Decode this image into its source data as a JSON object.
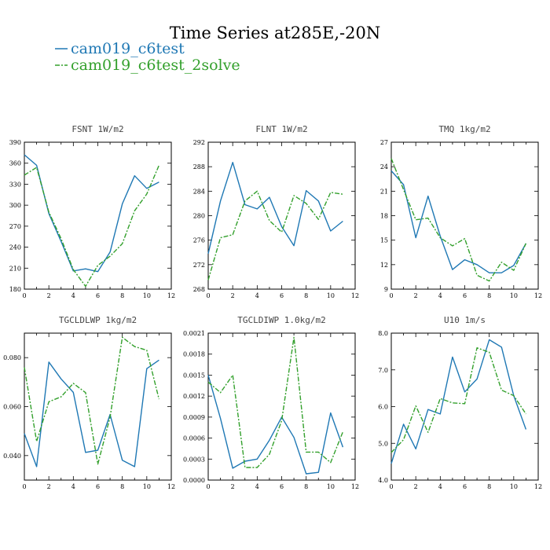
{
  "figure_title": "Time Series at285E,-20N",
  "legend": [
    {
      "name": "cam019_c6test",
      "color": "#1f78b4",
      "dash": "solid"
    },
    {
      "name": "cam019_c6test_2solve",
      "color": "#33a02c",
      "dash": "dashdot"
    }
  ],
  "chart_data": [
    {
      "type": "line",
      "title": "FSNT  1W/m2",
      "x": [
        0,
        1,
        2,
        3,
        4,
        5,
        6,
        7,
        8,
        9,
        10,
        11
      ],
      "xlim": [
        0,
        12
      ],
      "ylim": [
        180,
        390
      ],
      "xticks": [
        0,
        2,
        4,
        6,
        8,
        10,
        12
      ],
      "yticks": [
        180,
        210,
        240,
        270,
        300,
        330,
        360,
        390
      ],
      "ytick_labels": [
        "180",
        "210",
        "240",
        "270",
        "300",
        "330",
        "360",
        "390"
      ],
      "series": [
        {
          "name": "cam019_c6test",
          "values": [
            372,
            357,
            288,
            248,
            206,
            209,
            205,
            233,
            302,
            342,
            324,
            333
          ]
        },
        {
          "name": "cam019_c6test_2solve",
          "values": [
            343,
            354,
            290,
            252,
            208,
            184,
            214,
            227,
            245,
            292,
            316,
            357
          ]
        }
      ]
    },
    {
      "type": "line",
      "title": "FLNT  1W/m2",
      "x": [
        0,
        1,
        2,
        3,
        4,
        5,
        6,
        7,
        8,
        9,
        10,
        11
      ],
      "xlim": [
        0,
        12
      ],
      "ylim": [
        268,
        292
      ],
      "xticks": [
        0,
        2,
        4,
        6,
        8,
        10,
        12
      ],
      "yticks": [
        268,
        272,
        276,
        280,
        284,
        288,
        292
      ],
      "ytick_labels": [
        "268",
        "272",
        "276",
        "280",
        "284",
        "288",
        "292"
      ],
      "series": [
        {
          "name": "cam019_c6test",
          "values": [
            273.8,
            282.4,
            288.7,
            281.8,
            281.1,
            283.0,
            278.2,
            275.1,
            284.1,
            282.4,
            277.5,
            279.1
          ]
        },
        {
          "name": "cam019_c6test_2solve",
          "values": [
            269.5,
            276.4,
            276.9,
            282.4,
            284.0,
            279.2,
            277.3,
            283.3,
            282.0,
            279.4,
            283.8,
            283.5
          ]
        }
      ]
    },
    {
      "type": "line",
      "title": "TMQ  1kg/m2",
      "x": [
        0,
        1,
        2,
        3,
        4,
        5,
        6,
        7,
        8,
        9,
        10,
        11
      ],
      "xlim": [
        0,
        12
      ],
      "ylim": [
        9,
        27
      ],
      "xticks": [
        0,
        2,
        4,
        6,
        8,
        10,
        12
      ],
      "yticks": [
        9,
        12,
        15,
        18,
        21,
        24,
        27
      ],
      "ytick_labels": [
        "9",
        "12",
        "15",
        "18",
        "21",
        "24",
        "27"
      ],
      "series": [
        {
          "name": "cam019_c6test",
          "values": [
            23.5,
            21.8,
            15.3,
            20.4,
            15.5,
            11.4,
            12.6,
            12.0,
            11.0,
            11.0,
            11.9,
            14.6
          ]
        },
        {
          "name": "cam019_c6test_2solve",
          "values": [
            25.0,
            21.2,
            17.5,
            17.7,
            15.3,
            14.3,
            15.2,
            10.7,
            10.0,
            12.3,
            11.3,
            14.6
          ]
        }
      ]
    },
    {
      "type": "line",
      "title": "TGCLDLWP  1kg/m2",
      "x": [
        0,
        1,
        2,
        3,
        4,
        5,
        6,
        7,
        8,
        9,
        10,
        11
      ],
      "xlim": [
        0,
        12
      ],
      "ylim": [
        0.03,
        0.09
      ],
      "xticks": [
        0,
        2,
        4,
        6,
        8,
        10,
        12
      ],
      "yticks": [
        0.04,
        0.06,
        0.08
      ],
      "ytick_labels": [
        "0.040",
        "0.060",
        "0.080"
      ],
      "series": [
        {
          "name": "cam019_c6test",
          "values": [
            0.049,
            0.0355,
            0.0782,
            0.0713,
            0.0658,
            0.0413,
            0.0422,
            0.0568,
            0.0381,
            0.0355,
            0.0755,
            0.079
          ]
        },
        {
          "name": "cam019_c6test_2solve",
          "values": [
            0.076,
            0.0458,
            0.062,
            0.064,
            0.0695,
            0.0657,
            0.0365,
            0.0557,
            0.0883,
            0.0845,
            0.083,
            0.063
          ]
        }
      ]
    },
    {
      "type": "line",
      "title": "TGCLDIWP  1.0kg/m2",
      "x": [
        0,
        1,
        2,
        3,
        4,
        5,
        6,
        7,
        8,
        9,
        10,
        11
      ],
      "xlim": [
        0,
        12
      ],
      "ylim": [
        0,
        0.0021
      ],
      "xticks": [
        0,
        2,
        4,
        6,
        8,
        10,
        12
      ],
      "yticks": [
        0,
        0.0003,
        0.0006,
        0.0009,
        0.0012,
        0.0015,
        0.0018,
        0.0021
      ],
      "ytick_labels": [
        "0.0000",
        "0.0003",
        "0.0006",
        "0.0009",
        "0.0012",
        "0.0015",
        "0.0018",
        "0.0021"
      ],
      "series": [
        {
          "name": "cam019_c6test",
          "values": [
            0.0015,
            0.00088,
            0.00017,
            0.00027,
            0.0003,
            0.00057,
            0.0009,
            0.00061,
            9e-05,
            0.00011,
            0.00096,
            0.00047
          ]
        },
        {
          "name": "cam019_c6test_2solve",
          "values": [
            0.0014,
            0.00125,
            0.0015,
            0.00018,
            0.00018,
            0.00037,
            0.00085,
            0.00204,
            0.0004,
            0.0004,
            0.00025,
            0.00069
          ]
        }
      ]
    },
    {
      "type": "line",
      "title": "U10  1m/s",
      "x": [
        0,
        1,
        2,
        3,
        4,
        5,
        6,
        7,
        8,
        9,
        10,
        11
      ],
      "xlim": [
        0,
        12
      ],
      "ylim": [
        4.0,
        8.0
      ],
      "xticks": [
        0,
        2,
        4,
        6,
        8,
        10,
        12
      ],
      "yticks": [
        4,
        5,
        6,
        7,
        8
      ],
      "ytick_labels": [
        "4.0",
        "5.0",
        "6.0",
        "7.0",
        "8.0"
      ],
      "series": [
        {
          "name": "cam019_c6test",
          "values": [
            4.45,
            5.52,
            4.85,
            5.92,
            5.8,
            7.35,
            6.4,
            6.75,
            7.82,
            7.62,
            6.3,
            5.38
          ]
        },
        {
          "name": "cam019_c6test_2solve",
          "values": [
            4.75,
            5.1,
            6.02,
            5.3,
            6.22,
            6.1,
            6.08,
            7.6,
            7.48,
            6.45,
            6.3,
            5.8
          ]
        }
      ]
    }
  ]
}
